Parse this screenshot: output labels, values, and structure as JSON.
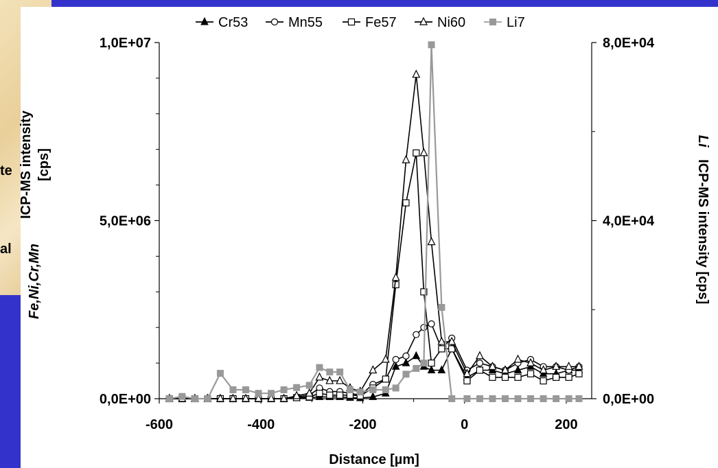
{
  "background": {
    "left_text_fragments": [
      "te",
      "al"
    ],
    "colors": {
      "slide_blue": "#3333cc",
      "parchment": "#eedaa8"
    }
  },
  "chart_data": {
    "type": "line",
    "xlabel": "Distance [µm]",
    "ylabel_left_italic": "Fe,Ni,Cr,Mn",
    "ylabel_left": "ICP-MS intensity [cps]",
    "ylabel_right_italic": "Li",
    "ylabel_right": "ICP-MS intensity [cps]",
    "xlim": [
      -600,
      250
    ],
    "ylim_left": [
      0,
      10000000
    ],
    "ylim_right": [
      0,
      80000
    ],
    "x_ticks": [
      -600,
      -400,
      -200,
      0,
      200
    ],
    "x_tick_labels": [
      "-600",
      "-400",
      "-200",
      "0",
      "200"
    ],
    "y_ticks_left": [
      0,
      5000000,
      10000000
    ],
    "y_tick_labels_left": [
      "0,0E+00",
      "5,0E+06",
      "1,0E+07"
    ],
    "y_minor_ticks_left": [
      1000000,
      2000000,
      3000000,
      4000000,
      6000000,
      7000000,
      8000000,
      9000000
    ],
    "y_ticks_right": [
      0,
      40000,
      80000
    ],
    "y_tick_labels_right": [
      "0,0E+00",
      "4,0E+04",
      "8,0E+04"
    ],
    "y_minor_ticks_right": [
      20000,
      60000
    ],
    "legend": {
      "position": "top",
      "entries": [
        "Cr53",
        "Mn55",
        "Fe57",
        "Ni60",
        "Li7"
      ]
    },
    "x": [
      -580,
      -555,
      -530,
      -505,
      -480,
      -455,
      -430,
      -405,
      -380,
      -355,
      -330,
      -305,
      -285,
      -265,
      -245,
      -225,
      -205,
      -180,
      -155,
      -135,
      -115,
      -95,
      -80,
      -65,
      -45,
      -25,
      5,
      30,
      55,
      80,
      105,
      130,
      155,
      180,
      205,
      225
    ],
    "series": [
      {
        "name": "Cr53",
        "axis": "left",
        "marker": "filled-triangle",
        "color": "#000000",
        "values": [
          0,
          0,
          0,
          0,
          0,
          0,
          0,
          0,
          0,
          0,
          20000,
          30000,
          50000,
          50000,
          50000,
          30000,
          20000,
          50000,
          150000,
          900000,
          1000000,
          1200000,
          900000,
          800000,
          800000,
          1400000,
          600000,
          800000,
          800000,
          700000,
          800000,
          900000,
          700000,
          700000,
          800000,
          800000
        ]
      },
      {
        "name": "Mn55",
        "axis": "left",
        "marker": "open-circle",
        "color": "#000000",
        "values": [
          0,
          0,
          0,
          0,
          0,
          0,
          0,
          0,
          0,
          0,
          50000,
          100000,
          300000,
          200000,
          200000,
          150000,
          100000,
          400000,
          550000,
          1100000,
          1200000,
          1800000,
          2000000,
          2100000,
          1400000,
          1700000,
          800000,
          1000000,
          900000,
          800000,
          1000000,
          1100000,
          900000,
          900000,
          800000,
          900000
        ]
      },
      {
        "name": "Fe57",
        "axis": "left",
        "marker": "open-square",
        "color": "#000000",
        "values": [
          0,
          0,
          0,
          0,
          0,
          0,
          0,
          0,
          0,
          0,
          30000,
          50000,
          150000,
          100000,
          100000,
          100000,
          80000,
          300000,
          550000,
          3200000,
          5500000,
          6900000,
          3000000,
          1000000,
          1400000,
          1400000,
          500000,
          800000,
          600000,
          600000,
          600000,
          700000,
          500000,
          600000,
          600000,
          700000
        ]
      },
      {
        "name": "Ni60",
        "axis": "left",
        "marker": "open-triangle",
        "color": "#000000",
        "values": [
          0,
          0,
          0,
          0,
          0,
          0,
          0,
          0,
          0,
          0,
          80000,
          150000,
          600000,
          500000,
          500000,
          300000,
          200000,
          800000,
          1100000,
          3400000,
          6700000,
          9100000,
          6900000,
          4400000,
          1600000,
          1600000,
          700000,
          1200000,
          900000,
          800000,
          1100000,
          1000000,
          800000,
          900000,
          900000,
          900000
        ]
      },
      {
        "name": "Li7",
        "axis": "right",
        "marker": "filled-square",
        "color": "#999999",
        "values": [
          0,
          500,
          0,
          0,
          5700,
          2000,
          2000,
          1200,
          1200,
          2000,
          2500,
          3000,
          7000,
          6000,
          6000,
          2000,
          1500,
          2000,
          2000,
          2400,
          5500,
          6800,
          8000,
          79500,
          20500,
          0,
          0,
          0,
          0,
          0,
          0,
          0,
          0,
          0,
          0,
          0
        ]
      }
    ]
  }
}
